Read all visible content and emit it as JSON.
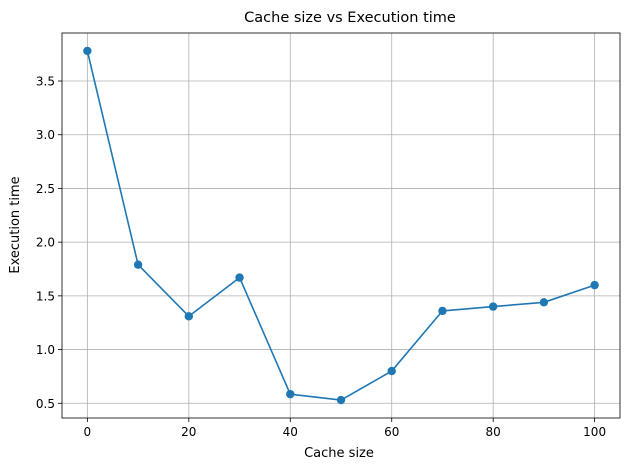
{
  "chart_data": {
    "type": "line",
    "title": "Cache size vs Execution time",
    "xlabel": "Cache size",
    "ylabel": "Execution time",
    "x": [
      0,
      10,
      20,
      30,
      40,
      50,
      60,
      70,
      80,
      90,
      100
    ],
    "series": [
      {
        "values": [
          3.78,
          1.79,
          1.31,
          1.67,
          0.585,
          0.53,
          0.8,
          1.36,
          1.4,
          1.44,
          1.6
        ],
        "color": "#1f77b4",
        "marker": "circle"
      }
    ],
    "xlim": [
      -5,
      105
    ],
    "ylim": [
      0.363,
      3.947
    ],
    "xticks": [
      0,
      20,
      40,
      60,
      80,
      100
    ],
    "yticks": [
      0.5,
      1.0,
      1.5,
      2.0,
      2.5,
      3.0,
      3.5
    ],
    "xtick_labels": [
      "0",
      "20",
      "40",
      "60",
      "80",
      "100"
    ],
    "ytick_labels": [
      "0.5",
      "1.0",
      "1.5",
      "2.0",
      "2.5",
      "3.0",
      "3.5"
    ],
    "grid": true,
    "colors": {
      "line": "#1f77b4",
      "grid": "#b0b0b0",
      "axes": "#000000"
    }
  }
}
